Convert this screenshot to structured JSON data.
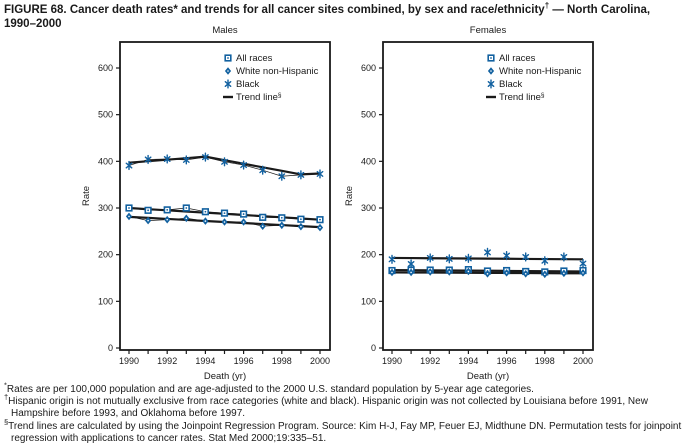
{
  "figure": {
    "title_parts": [
      {
        "t": "FIGURE 68. Cancer death rates* and trends for all cancer sites combined, by sex and race/ethnicity"
      },
      {
        "t": "†",
        "sup": true
      },
      {
        "t": " — North Carolina, 1990–2000"
      }
    ]
  },
  "colors": {
    "series_blue": "#1261a0",
    "trend_black": "#1a1a1a",
    "text": "#1a1a1a",
    "background": "#ffffff"
  },
  "chart_data": [
    {
      "type": "line",
      "title": "Males",
      "xlabel": "Death (yr)",
      "ylabel": "Rate",
      "x": [
        1990,
        1991,
        1992,
        1993,
        1994,
        1995,
        1996,
        1997,
        1998,
        1999,
        2000
      ],
      "x_tick_labels": [
        1990,
        1992,
        1994,
        1996,
        1998,
        2000
      ],
      "ylim": [
        0,
        600
      ],
      "yticks": [
        0,
        100,
        200,
        300,
        400,
        500,
        600
      ],
      "grid": false,
      "legend_position": "upper-center-right",
      "connect_markers": true,
      "legend": [
        {
          "label": "All races",
          "marker": "square"
        },
        {
          "label": "White non-Hispanic",
          "marker": "diamond"
        },
        {
          "label": "Black",
          "marker": "asterisk"
        },
        {
          "label": "Trend line",
          "sup": "§",
          "marker": "dash"
        }
      ],
      "series": [
        {
          "name": "All races",
          "marker": "square",
          "values": [
            300,
            295,
            296,
            300,
            292,
            289,
            287,
            280,
            279,
            276,
            275
          ]
        },
        {
          "name": "White non-Hispanic",
          "marker": "diamond",
          "values": [
            282,
            273,
            275,
            278,
            272,
            270,
            270,
            261,
            263,
            260,
            258
          ]
        },
        {
          "name": "Black",
          "marker": "asterisk",
          "values": [
            391,
            404,
            405,
            403,
            409,
            399,
            392,
            381,
            368,
            371,
            373
          ]
        }
      ],
      "trend_lines": [
        {
          "name": "All races trend",
          "values": [
            300,
            297.5,
            295,
            292.5,
            290,
            287.5,
            285,
            282.5,
            280,
            277.5,
            275
          ]
        },
        {
          "name": "White non-Hispanic trend",
          "values": [
            281,
            278.8,
            276.6,
            274.4,
            272.2,
            270,
            267.8,
            265.6,
            263.4,
            261.2,
            259
          ]
        },
        {
          "name": "Black trend",
          "values": [
            397,
            400.3,
            403.5,
            406.8,
            410,
            402.4,
            394.8,
            387.2,
            379.6,
            372,
            374
          ]
        }
      ]
    },
    {
      "type": "line",
      "title": "Females",
      "xlabel": "Death (yr)",
      "ylabel": "Rate",
      "x": [
        1990,
        1991,
        1992,
        1993,
        1994,
        1995,
        1996,
        1997,
        1998,
        1999,
        2000
      ],
      "x_tick_labels": [
        1990,
        1992,
        1994,
        1996,
        1998,
        2000
      ],
      "ylim": [
        0,
        600
      ],
      "yticks": [
        0,
        100,
        200,
        300,
        400,
        500,
        600
      ],
      "grid": false,
      "legend_position": "upper-center-right",
      "connect_markers": false,
      "legend": [
        {
          "label": "All races",
          "marker": "square"
        },
        {
          "label": "White non-Hispanic",
          "marker": "diamond"
        },
        {
          "label": "Black",
          "marker": "asterisk"
        },
        {
          "label": "Trend line",
          "sup": "§",
          "marker": "dash"
        }
      ],
      "series": [
        {
          "name": "All races",
          "marker": "square",
          "values": [
            166,
            167,
            167,
            167,
            168,
            165,
            166,
            164,
            163,
            165,
            166
          ]
        },
        {
          "name": "White non-Hispanic",
          "marker": "diamond",
          "values": [
            162,
            162,
            163,
            163,
            164,
            159,
            161,
            159,
            158,
            160,
            161
          ]
        },
        {
          "name": "Black",
          "marker": "asterisk",
          "values": [
            190,
            180,
            193,
            191,
            192,
            205,
            198,
            195,
            187,
            195,
            181
          ]
        }
      ],
      "trend_lines": [
        {
          "name": "All races trend",
          "values": [
            167,
            166.7,
            166.4,
            166.1,
            165.8,
            165.5,
            165.2,
            164.9,
            164.6,
            164.3,
            164
          ]
        },
        {
          "name": "White non-Hispanic trend",
          "values": [
            162,
            161.8,
            161.6,
            161.4,
            161.2,
            161,
            160.8,
            160.6,
            160.4,
            160.2,
            160
          ]
        },
        {
          "name": "Black trend",
          "values": [
            193,
            192.7,
            192.4,
            192.1,
            191.8,
            191.5,
            191.2,
            190.9,
            190.6,
            190.3,
            190
          ]
        }
      ]
    }
  ],
  "footnotes": [
    {
      "sup": "*",
      "text": "Rates are per 100,000 population and are age-adjusted to the 2000 U.S. standard population by 5-year age categories."
    },
    {
      "sup": "†",
      "text": "Hispanic origin is not mutually exclusive from race categories (white and black). Hispanic origin was not collected by Louisiana before 1991, New Hampshire before 1993, and Oklahoma before 1997."
    },
    {
      "sup": "§",
      "text": "Trend lines are calculated by using the Joinpoint Regression Program. Source: Kim H-J, Fay MP, Feuer EJ, Midthune DN. Permutation tests for joinpoint regression with applications to cancer rates. Stat Med 2000;19:335–51."
    }
  ]
}
